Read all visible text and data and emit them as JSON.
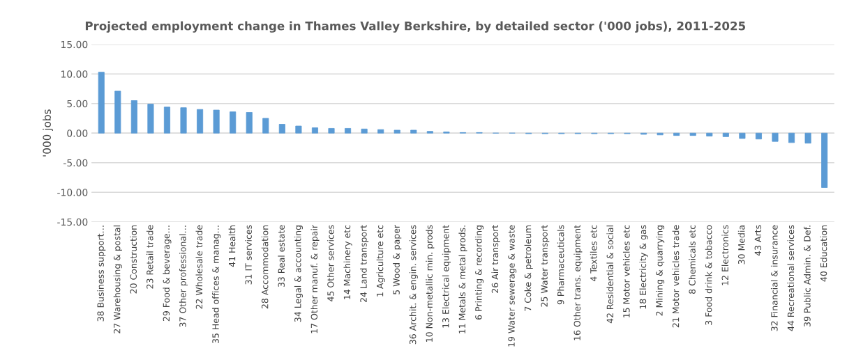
{
  "chart_data": {
    "type": "bar",
    "title": "Projected employment change in Thames Valley Berkshire, by detailed sector ('000 jobs), 2011-2025",
    "ylabel": "'000 jobs",
    "categories": [
      "38 Business support…",
      "27 Warehousing & postal",
      "20 Construction",
      "23 Retail trade",
      "29 Food & beverage…",
      "37 Other professional…",
      "22 Wholesale trade",
      "35 Head offices & manag…",
      "41 Health",
      "31 IT services",
      "28 Accommodation",
      "33 Real estate",
      "34 Legal & accounting",
      "17 Other manuf. & repair",
      "45 Other services",
      "14 Machinery etc",
      "24 Land transport",
      "1 Agriculture etc",
      "5 Wood & paper",
      "36 Archit. & engin. services",
      "10 Non-metallic min. prods",
      "13 Electrical equipment",
      "11 Metals & metal prods.",
      "6 Printing & recording",
      "26 Air transport",
      "19 Water sewerage & waste",
      "7 Coke & petroleum",
      "25 Water transport",
      "9 Pharmaceuticals",
      "16 Other trans. equipment",
      "4 Textiles etc",
      "42 Residential & social",
      "15 Motor vehicles etc",
      "18 Electricity & gas",
      "2 Mining & quarrying",
      "21 Motor vehicles trade",
      "8 Chemicals etc",
      "3 Food drink & tobacco",
      "12 Electronics",
      "30 Media",
      "43 Arts",
      "32 Financial & insurance",
      "44 Recreational services",
      "39 Public Admin. & Def.",
      "40 Education"
    ],
    "values": [
      10.3,
      7.1,
      5.5,
      4.9,
      4.4,
      4.3,
      4.0,
      3.9,
      3.6,
      3.5,
      2.5,
      1.5,
      1.2,
      0.9,
      0.8,
      0.8,
      0.7,
      0.6,
      0.5,
      0.5,
      0.3,
      0.2,
      0.1,
      0.1,
      0.0,
      0.0,
      -0.1,
      -0.1,
      -0.1,
      -0.1,
      -0.1,
      -0.1,
      -0.1,
      -0.2,
      -0.3,
      -0.4,
      -0.4,
      -0.5,
      -0.6,
      -0.9,
      -1.0,
      -1.4,
      -1.6,
      -1.7,
      -9.2
    ],
    "color": "#5b9bd5",
    "ylim": [
      -15,
      15
    ],
    "yticks": [
      {
        "value": -15,
        "label": "-15.00"
      },
      {
        "value": -10,
        "label": "-10.00"
      },
      {
        "value": -5,
        "label": "-5.00"
      },
      {
        "value": 0,
        "label": "0.00"
      },
      {
        "value": 5,
        "label": "5.00"
      },
      {
        "value": 10,
        "label": "10.00"
      },
      {
        "value": 15,
        "label": "15.00"
      }
    ],
    "grid": "y",
    "legend": false
  }
}
